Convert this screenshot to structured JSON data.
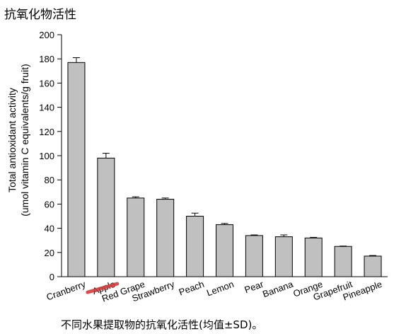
{
  "header_title": "抗氧化物活性",
  "caption": "不同水果提取物的抗氧化活性(均值±SD)。",
  "colors": {
    "bar_fill": "#c0c0c0",
    "bar_stroke": "#000000",
    "highlight": "#d23b3b"
  },
  "chart_data": {
    "type": "bar",
    "ylabel_line1": "Total antioxidant activity",
    "ylabel_line2": "(umol vitamin C equivalents/g fruit)",
    "xlabel": "",
    "ylim": [
      0,
      200
    ],
    "yticks": [
      0,
      20,
      40,
      60,
      80,
      100,
      120,
      140,
      160,
      180,
      200
    ],
    "grid": false,
    "categories": [
      "Cranberry",
      "Apple",
      "Red Grape",
      "Strawberry",
      "Peach",
      "Lemon",
      "Pear",
      "Banana",
      "Orange",
      "Grapefruit",
      "Pineapple"
    ],
    "values": [
      177,
      98,
      65,
      64,
      50,
      43,
      34,
      33,
      32,
      25,
      17
    ],
    "errors": [
      4,
      4,
      1,
      1,
      2.5,
      1,
      0.5,
      1.5,
      0.5,
      0.3,
      0.5
    ],
    "highlighted_category": "Apple"
  }
}
